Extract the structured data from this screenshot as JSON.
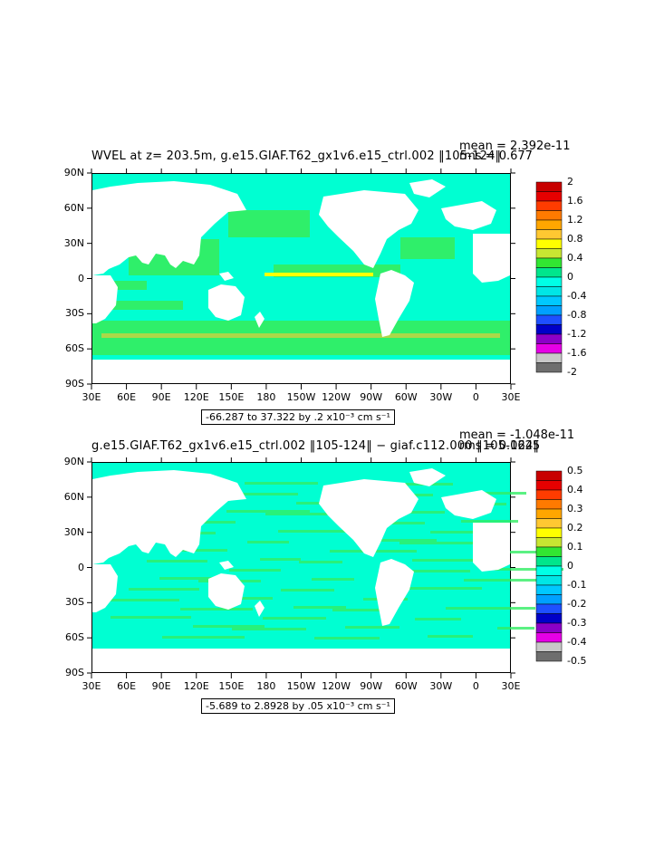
{
  "panels": [
    {
      "title": "WVEL at z= 203.5m, g.e15.GIAF.T62_gx1v6.e15_ctrl.002 ‖105-124‖",
      "mean_text": "mean = 2.392e-11",
      "rms_text": "rms = 0.677",
      "range_text": "-66.287 to 37.322 by .2 x10⁻³ cm s⁻¹",
      "colorbar_labels": [
        "2",
        "1.6",
        "1.2",
        "0.8",
        "0.4",
        "0",
        "-0.4",
        "-0.8",
        "-1.2",
        "-1.6",
        "-2"
      ]
    },
    {
      "title": "g.e15.GIAF.T62_gx1v6.e15_ctrl.002 ‖105-124‖ − giaf.c112.000 ‖105-124‖",
      "mean_text": "mean = -1.048e-11",
      "rms_text": "rms = 0.0625",
      "range_text": "-5.689 to 2.8928 by .05 x10⁻³ cm s⁻¹",
      "colorbar_labels": [
        "0.5",
        "0.4",
        "0.3",
        "0.2",
        "0.1",
        "0",
        "-0.1",
        "-0.2",
        "-0.3",
        "-0.4",
        "-0.5"
      ]
    }
  ],
  "axes": {
    "y_ticks": [
      "90N",
      "60N",
      "30N",
      "0",
      "30S",
      "60S",
      "90S"
    ],
    "x_ticks": [
      "30E",
      "60E",
      "90E",
      "120E",
      "150E",
      "180",
      "150W",
      "120W",
      "90W",
      "60W",
      "30W",
      "0",
      "30E"
    ]
  },
  "colors": {
    "colorbar": [
      "#c80000",
      "#e60000",
      "#ff3c00",
      "#ff7a00",
      "#ffa600",
      "#ffc832",
      "#ffff00",
      "#c8e632",
      "#32e632",
      "#00e68c",
      "#00ffe6",
      "#00e6e6",
      "#00c8ff",
      "#00a0ff",
      "#1e50ff",
      "#0000c8",
      "#8c00c8",
      "#e600e6",
      "#c8c8c8",
      "#6e6e6e"
    ],
    "ocean_main": "#00ffd2",
    "ocean_alt": "#32ee64",
    "land": "#ffffff"
  },
  "chart_data": [
    {
      "type": "heatmap",
      "title": "WVEL at z= 203.5m, g.e15.GIAF.T62_gx1v6.e15_ctrl.002 ‖105-124‖",
      "variable": "WVEL",
      "depth": "203.5m",
      "mean": 2.392e-11,
      "rms": 0.677,
      "contour_min": -66.287,
      "contour_max": 37.322,
      "contour_interval": 0.2,
      "units": "x10^-3 cm s^-1",
      "colorbar_range": [
        -2,
        2
      ],
      "colorbar_ticks": [
        2,
        1.6,
        1.2,
        0.8,
        0.4,
        0,
        -0.4,
        -0.8,
        -1.2,
        -1.6,
        -2
      ],
      "x_range": [
        "30E",
        "30E"
      ],
      "y_range": [
        "90S",
        "90N"
      ]
    },
    {
      "type": "heatmap",
      "title": "g.e15.GIAF.T62_gx1v6.e15_ctrl.002 ‖105-124‖ − giaf.c112.000 ‖105-124‖",
      "mean": -1.048e-11,
      "rms": 0.0625,
      "contour_min": -5.689,
      "contour_max": 2.8928,
      "contour_interval": 0.05,
      "units": "x10^-3 cm s^-1",
      "colorbar_range": [
        -0.5,
        0.5
      ],
      "colorbar_ticks": [
        0.5,
        0.4,
        0.3,
        0.2,
        0.1,
        0,
        -0.1,
        -0.2,
        -0.3,
        -0.4,
        -0.5
      ],
      "x_range": [
        "30E",
        "30E"
      ],
      "y_range": [
        "90S",
        "90N"
      ]
    }
  ]
}
